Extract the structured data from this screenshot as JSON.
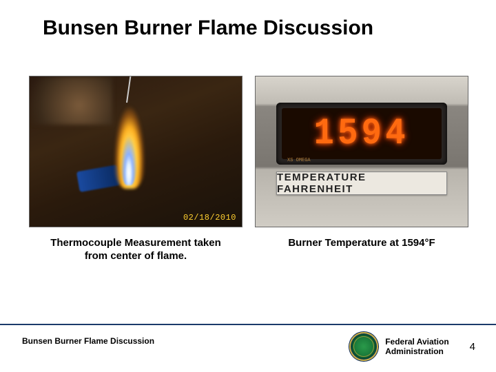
{
  "title": "Bunsen Burner Flame Discussion",
  "left_panel": {
    "caption_line1": "Thermocouple Measurement taken",
    "caption_line2": "from center of flame.",
    "photo_date": "02/18/2010"
  },
  "right_panel": {
    "caption": "Burner Temperature at 1594°F",
    "readout_value": "1594",
    "label_strip": "TEMPERATURE FAHRENHEIT",
    "model_text": "XS OMEGA"
  },
  "footer": {
    "left_text": "Bunsen Burner Flame Discussion",
    "agency_line1": "Federal Aviation",
    "agency_line2": "Administration",
    "page_number": "4"
  },
  "colors": {
    "title_color": "#000000",
    "digit_color": "#ff6a10",
    "rule_color": "#1a3a6a"
  }
}
